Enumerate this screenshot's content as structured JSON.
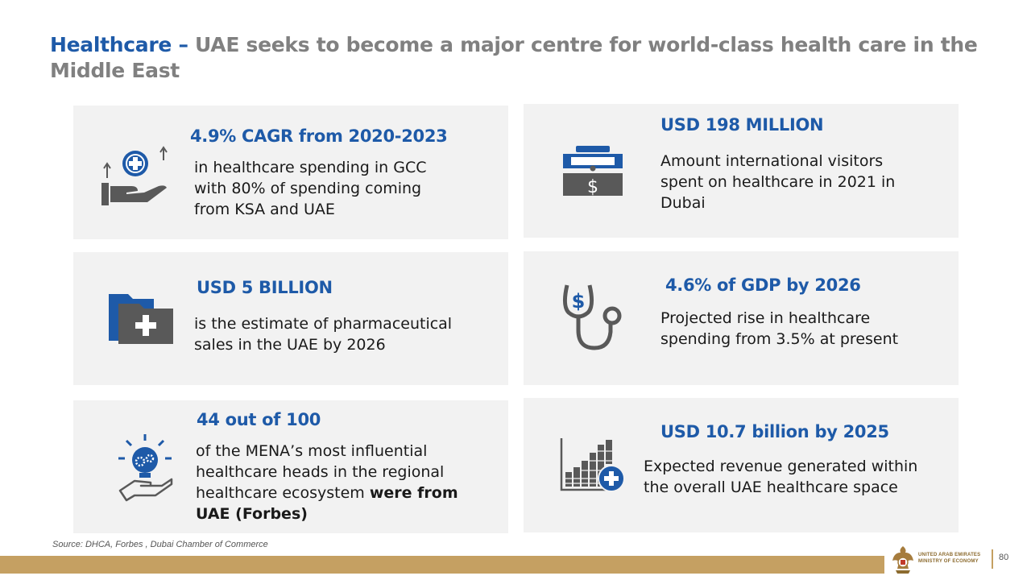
{
  "title": {
    "accent": "Healthcare –",
    "rest": " UAE seeks to become a major centre for world-class health care in the Middle East"
  },
  "colors": {
    "accent": "#1e5aa8",
    "card": "#f2f2f2",
    "icon_gray": "#595959",
    "gold": "#c5a062"
  },
  "cards": [
    {
      "heading": "4.9% CAGR from 2020-2023",
      "body": "in healthcare spending in GCC with 80% of spending coming from KSA and UAE",
      "icon": "hand-medical-cross-icon"
    },
    {
      "heading": "USD 198 MILLION",
      "body": "Amount international visitors spent on healthcare in 2021 in Dubai",
      "icon": "money-box-icon"
    },
    {
      "heading": "USD 5 BILLION",
      "body": "is the estimate of pharmaceutical sales in the UAE by 2026",
      "icon": "medical-folder-icon"
    },
    {
      "heading": "4.6% of GDP by 2026",
      "body": "Projected rise in healthcare spending from 3.5% at present",
      "icon": "stethoscope-dollar-icon"
    },
    {
      "heading": "44 out of 100",
      "body_lead": "of the MENA’s most influential healthcare heads in the regional healthcare ecosystem ",
      "body_bold": "were from UAE (Forbes)",
      "icon": "idea-hand-gears-icon"
    },
    {
      "heading": "USD 10.7 billion by 2025",
      "body": "Expected revenue generated within the overall UAE healthcare space",
      "icon": "growth-chart-cross-icon"
    }
  ],
  "source": "Source: DHCA, Forbes , Dubai Chamber of Commerce",
  "footer": {
    "ministry_line1": "UNITED ARAB EMIRATES",
    "ministry_line2": "MINISTRY OF ECONOMY",
    "page_number": "80"
  }
}
